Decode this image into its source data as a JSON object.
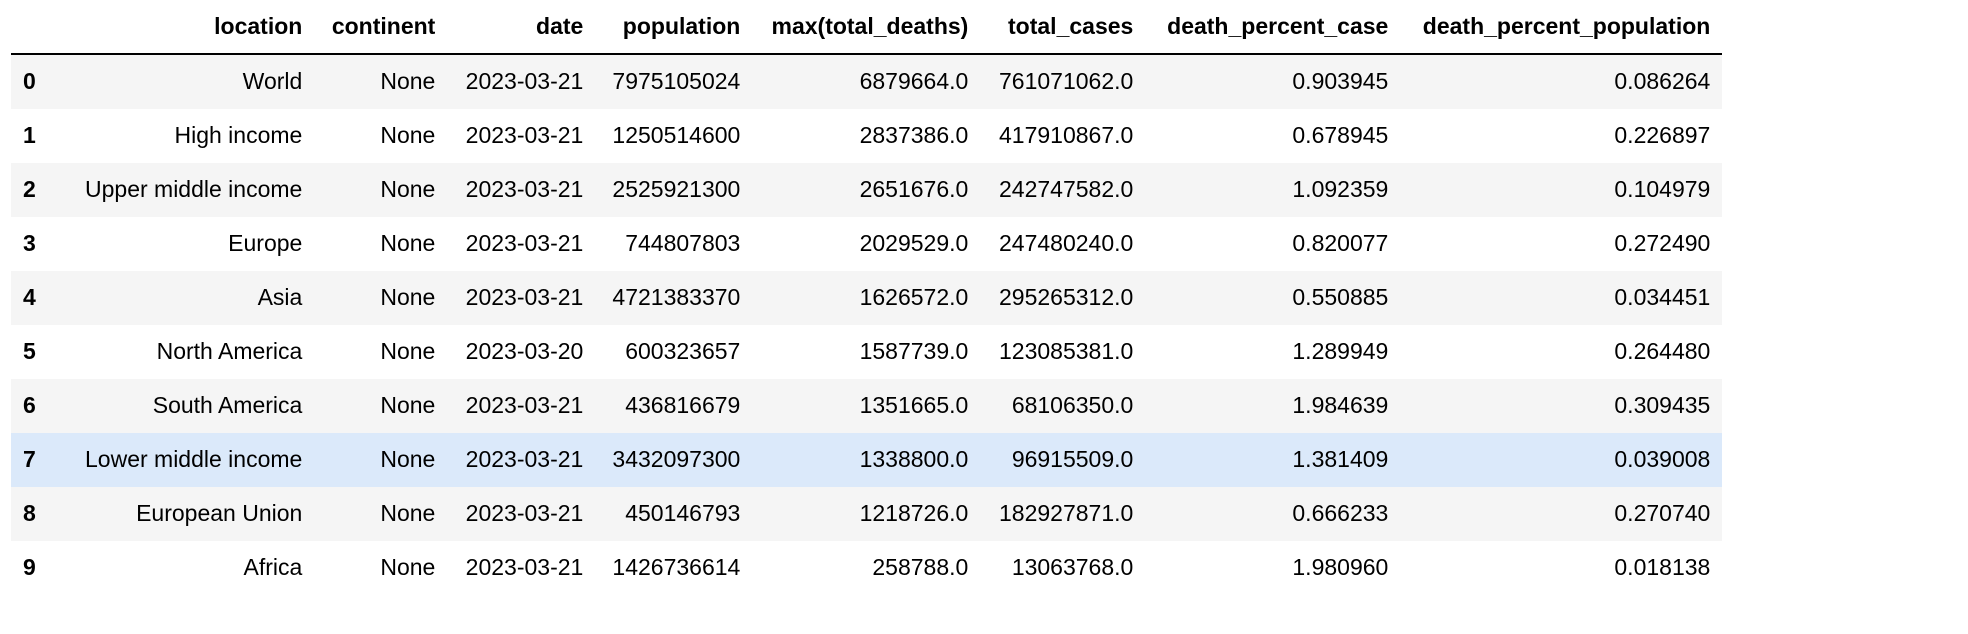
{
  "table": {
    "columns": [
      {
        "name": "index",
        "label": ""
      },
      {
        "name": "location",
        "label": "location"
      },
      {
        "name": "continent",
        "label": "continent"
      },
      {
        "name": "date",
        "label": "date"
      },
      {
        "name": "population",
        "label": "population"
      },
      {
        "name": "max-total-deaths",
        "label": "max(total_deaths)"
      },
      {
        "name": "total-cases",
        "label": "total_cases"
      },
      {
        "name": "death-percent-case",
        "label": "death_percent_case"
      },
      {
        "name": "death-percent-population",
        "label": "death_percent_population"
      }
    ],
    "rows": [
      {
        "index": "0",
        "values": [
          "World",
          "None",
          "2023-03-21",
          "7975105024",
          "6879664.0",
          "761071062.0",
          "0.903945",
          "0.086264"
        ]
      },
      {
        "index": "1",
        "values": [
          "High income",
          "None",
          "2023-03-21",
          "1250514600",
          "2837386.0",
          "417910867.0",
          "0.678945",
          "0.226897"
        ]
      },
      {
        "index": "2",
        "values": [
          "Upper middle income",
          "None",
          "2023-03-21",
          "2525921300",
          "2651676.0",
          "242747582.0",
          "1.092359",
          "0.104979"
        ]
      },
      {
        "index": "3",
        "values": [
          "Europe",
          "None",
          "2023-03-21",
          "744807803",
          "2029529.0",
          "247480240.0",
          "0.820077",
          "0.272490"
        ]
      },
      {
        "index": "4",
        "values": [
          "Asia",
          "None",
          "2023-03-21",
          "4721383370",
          "1626572.0",
          "295265312.0",
          "0.550885",
          "0.034451"
        ]
      },
      {
        "index": "5",
        "values": [
          "North America",
          "None",
          "2023-03-20",
          "600323657",
          "1587739.0",
          "123085381.0",
          "1.289949",
          "0.264480"
        ]
      },
      {
        "index": "6",
        "values": [
          "South America",
          "None",
          "2023-03-21",
          "436816679",
          "1351665.0",
          "68106350.0",
          "1.984639",
          "0.309435"
        ]
      },
      {
        "index": "7",
        "values": [
          "Lower middle income",
          "None",
          "2023-03-21",
          "3432097300",
          "1338800.0",
          "96915509.0",
          "1.381409",
          "0.039008"
        ]
      },
      {
        "index": "8",
        "values": [
          "European Union",
          "None",
          "2023-03-21",
          "450146793",
          "1218726.0",
          "182927871.0",
          "0.666233",
          "0.270740"
        ]
      },
      {
        "index": "9",
        "values": [
          "Africa",
          "None",
          "2023-03-21",
          "1426736614",
          "258788.0",
          "13063768.0",
          "1.980960",
          "0.018138"
        ]
      }
    ],
    "hovered_row": 7,
    "colors": {
      "text": "#000000",
      "stripe": "#f5f5f5",
      "hover": "#dbe9fa",
      "header_border": "#000000"
    }
  }
}
